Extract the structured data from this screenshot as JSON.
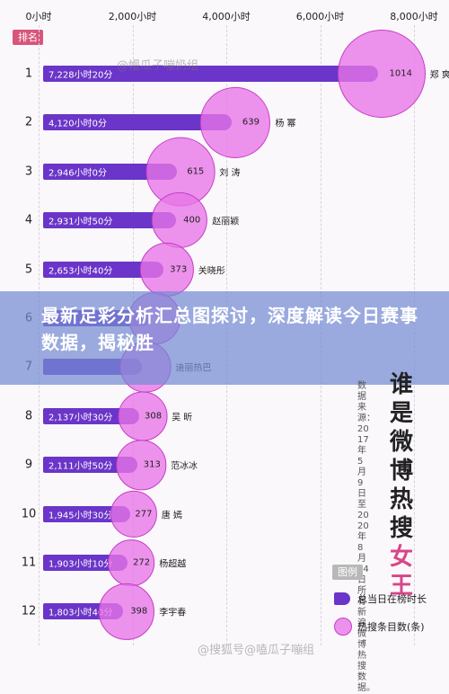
{
  "chart_data": {
    "type": "bar",
    "rank_header": "排名",
    "x_ticks": [
      "0小时",
      "2,000小时",
      "4,000小时",
      "6,000小时",
      "8,000小时"
    ],
    "xlim": [
      0,
      8000
    ],
    "rows": [
      {
        "rank": "1",
        "name": "郑 爽",
        "hours": 7228,
        "hours_label": "7,228小时20分",
        "count": 1014,
        "count_label": "1014"
      },
      {
        "rank": "2",
        "name": "杨 幂",
        "hours": 4120,
        "hours_label": "4,120小时0分",
        "count": 639,
        "count_label": "639"
      },
      {
        "rank": "3",
        "name": "刘 涛",
        "hours": 2946,
        "hours_label": "2,946小时0分",
        "count": 615,
        "count_label": "615"
      },
      {
        "rank": "4",
        "name": "赵丽颖",
        "hours": 2931,
        "hours_label": "2,931小时50分",
        "count": 400,
        "count_label": "400"
      },
      {
        "rank": "5",
        "name": "关晓彤",
        "hours": 2653,
        "hours_label": "2,653小时40分",
        "count": 373,
        "count_label": "373"
      },
      {
        "rank": "6",
        "name": "",
        "hours": 2400,
        "hours_label": "",
        "count": 340,
        "count_label": ""
      },
      {
        "rank": "7",
        "name": "迪丽热巴",
        "hours": 2200,
        "hours_label": "",
        "count": 330,
        "count_label": ""
      },
      {
        "rank": "8",
        "name": "吴 昕",
        "hours": 2137,
        "hours_label": "2,137小时30分",
        "count": 308,
        "count_label": "308"
      },
      {
        "rank": "9",
        "name": "范冰冰",
        "hours": 2111,
        "hours_label": "2,111小时50分",
        "count": 313,
        "count_label": "313"
      },
      {
        "rank": "10",
        "name": "唐 嫣",
        "hours": 1945,
        "hours_label": "1,945小时30分",
        "count": 277,
        "count_label": "277"
      },
      {
        "rank": "11",
        "name": "杨超越",
        "hours": 1903,
        "hours_label": "1,903小时10分",
        "count": 272,
        "count_label": "272"
      },
      {
        "rank": "12",
        "name": "李宇春",
        "hours": 1803,
        "hours_label": "1,803小时40分",
        "count": 398,
        "count_label": "398"
      }
    ],
    "series": [
      {
        "name": "总当日在榜时长",
        "color": "#6a35c8"
      },
      {
        "name": "热搜条目数(条)",
        "color": "#e874e8"
      }
    ],
    "legend_title": "图例"
  },
  "overlay": {
    "headline": "最新足彩分析汇总图探讨，深度解读今日赛事数据，揭秘胜"
  },
  "side_title": {
    "main": "谁是微博热搜",
    "accent": "女王"
  },
  "source_note": "数据来源：2017年5月9日至2020年8月24日所有新浪微博热搜数据。",
  "watermarks": [
    "@幔瓜子嘣奶组",
    "@搜狐号@嗑瓜子嘣组"
  ]
}
